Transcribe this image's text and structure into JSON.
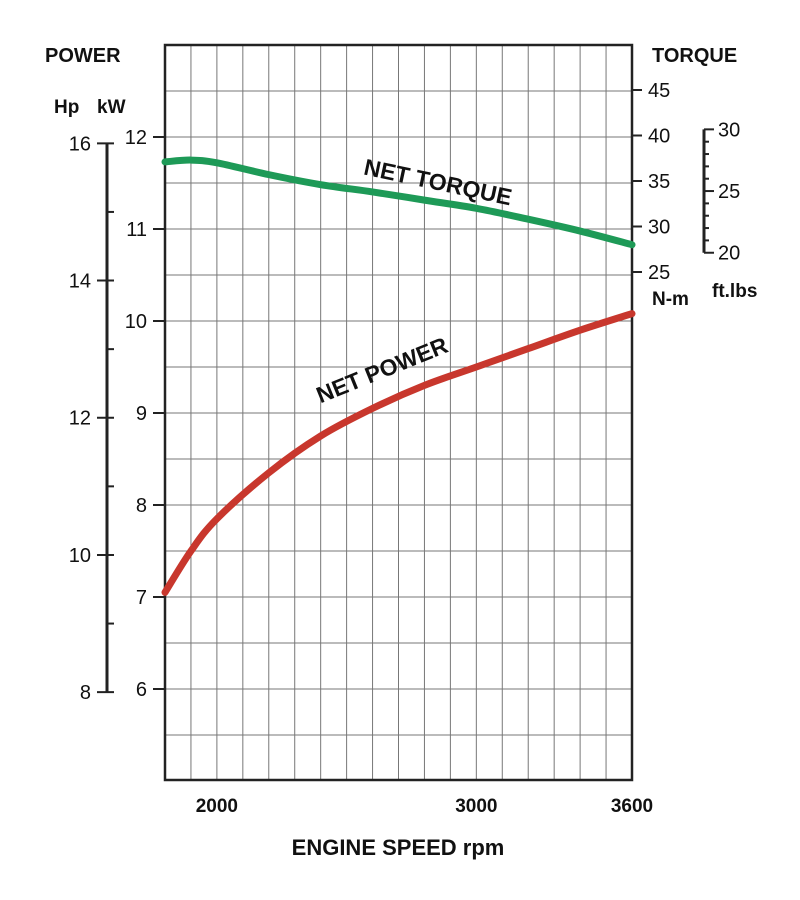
{
  "chart_data": {
    "type": "line",
    "title": "",
    "xlabel": "ENGINE SPEED rpm",
    "x_range": [
      1800,
      3600
    ],
    "x_ticks": [
      2000,
      3000,
      3600
    ],
    "left_axis": {
      "title": "POWER",
      "units": [
        "Hp",
        "kW"
      ],
      "kw_range": [
        5,
        12.6
      ],
      "kw_ticks": [
        6,
        7,
        8,
        9,
        10,
        11,
        12
      ],
      "hp_ticks": [
        8,
        10,
        12,
        14,
        16
      ]
    },
    "right_axis": {
      "title": "TORQUE",
      "nm_ticks": [
        25,
        30,
        35,
        40,
        45
      ],
      "nm_unit": "N-m",
      "ftlbs_ticks": [
        20,
        25,
        30
      ],
      "ftlbs_unit": "ft.lbs"
    },
    "grid": true,
    "series": [
      {
        "name": "NET TORQUE",
        "axis": "torque_nm",
        "color": "#1e9a57",
        "x": [
          1800,
          1900,
          2000,
          2200,
          2400,
          2600,
          2800,
          3000,
          3200,
          3400,
          3600
        ],
        "y": [
          37.1,
          37.3,
          37.0,
          35.7,
          34.6,
          33.8,
          32.9,
          32.0,
          30.8,
          29.5,
          28.0
        ]
      },
      {
        "name": "NET POWER",
        "axis": "power_kw",
        "color": "#c8372d",
        "x": [
          1800,
          1900,
          2000,
          2200,
          2400,
          2600,
          2800,
          3000,
          3200,
          3400,
          3600
        ],
        "y": [
          7.05,
          7.5,
          7.85,
          8.35,
          8.75,
          9.05,
          9.3,
          9.5,
          9.7,
          9.9,
          10.08
        ]
      }
    ]
  }
}
